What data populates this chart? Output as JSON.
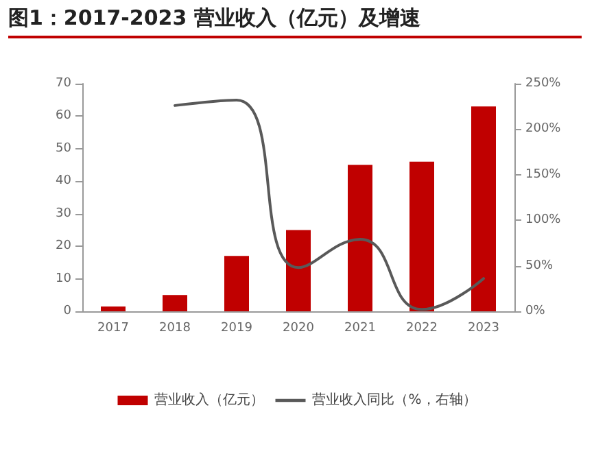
{
  "chart_data": {
    "type": "bar",
    "title": "图1：2017-2023 营业收入（亿元）及增速",
    "categories": [
      "2017",
      "2018",
      "2019",
      "2020",
      "2021",
      "2022",
      "2023"
    ],
    "series": [
      {
        "name": "营业收入（亿元）",
        "color": "#c00000",
        "values": [
          1.5,
          5,
          17,
          25,
          45,
          46,
          63
        ]
      },
      {
        "name": "营业收入同比（%，右轴）",
        "type": "line",
        "axis": "y2",
        "color": "#595959",
        "values": [
          null,
          226,
          232,
          48,
          79,
          2,
          36
        ]
      }
    ],
    "ylim": [
      0,
      70
    ],
    "yticks": [
      0,
      10,
      20,
      30,
      40,
      50,
      60,
      70
    ],
    "y2lim": [
      0,
      250
    ],
    "y2ticks": [
      {
        "value": 0,
        "label": "0%"
      },
      {
        "value": 50,
        "label": "50%"
      },
      {
        "value": 100,
        "label": "100%"
      },
      {
        "value": 150,
        "label": "150%"
      },
      {
        "value": 200,
        "label": "200%"
      },
      {
        "value": 250,
        "label": "250%"
      }
    ],
    "grid": false,
    "legend": "bottom",
    "marker": "none",
    "line_style": "solid"
  }
}
